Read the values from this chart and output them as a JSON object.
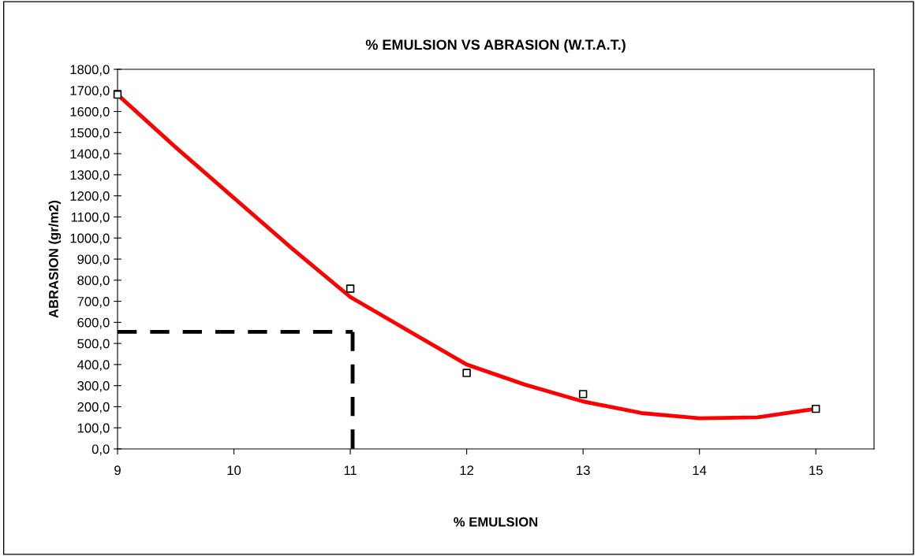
{
  "chart_data": {
    "type": "scatter",
    "title": "% EMULSION VS ABRASION (W.T.A.T.)",
    "xlabel": "% EMULSION",
    "ylabel": "ABRASION (gr/m2)",
    "series": [
      {
        "color": "#000000",
        "marker": "square",
        "x": [
          9,
          11,
          12,
          13,
          15
        ],
        "values": [
          1680,
          760,
          360,
          260,
          190
        ]
      },
      {
        "type": "line",
        "color": "#ff0000",
        "marker": "none",
        "x": [
          9,
          9.5,
          10,
          10.5,
          11,
          11.5,
          12,
          12.5,
          13,
          13.5,
          14,
          14.5,
          15
        ],
        "values": [
          1680,
          1430,
          1190,
          950,
          720,
          560,
          400,
          305,
          225,
          170,
          145,
          150,
          190
        ]
      }
    ],
    "ref_lines": [
      {
        "axis": "y",
        "value": 555,
        "color": "#000000",
        "line_style": "dashed"
      },
      {
        "axis": "x",
        "value": 11.02,
        "color": "#000000",
        "line_style": "dashed"
      }
    ],
    "xlim": [
      9,
      15.5
    ],
    "xticks": [
      9,
      10,
      11,
      12,
      13,
      14,
      15
    ],
    "ylim": [
      0,
      1800
    ],
    "yticks": [
      {
        "value": 0,
        "label": "0,0"
      },
      {
        "value": 100,
        "label": "100,0"
      },
      {
        "value": 200,
        "label": "200,0"
      },
      {
        "value": 300,
        "label": "300,0"
      },
      {
        "value": 400,
        "label": "400,0"
      },
      {
        "value": 500,
        "label": "500,0"
      },
      {
        "value": 600,
        "label": "600,0"
      },
      {
        "value": 700,
        "label": "700,0"
      },
      {
        "value": 800,
        "label": "800,0"
      },
      {
        "value": 900,
        "label": "900,0"
      },
      {
        "value": 1000,
        "label": "1000,0"
      },
      {
        "value": 1100,
        "label": "1100,0"
      },
      {
        "value": 1200,
        "label": "1200,0"
      },
      {
        "value": 1300,
        "label": "1300,0"
      },
      {
        "value": 1400,
        "label": "1400,0"
      },
      {
        "value": 1500,
        "label": "1500,0"
      },
      {
        "value": 1600,
        "label": "1600,0"
      },
      {
        "value": 1700,
        "label": "1700,0"
      },
      {
        "value": 1800,
        "label": "1800,0"
      }
    ],
    "grid": false,
    "legend": false
  }
}
